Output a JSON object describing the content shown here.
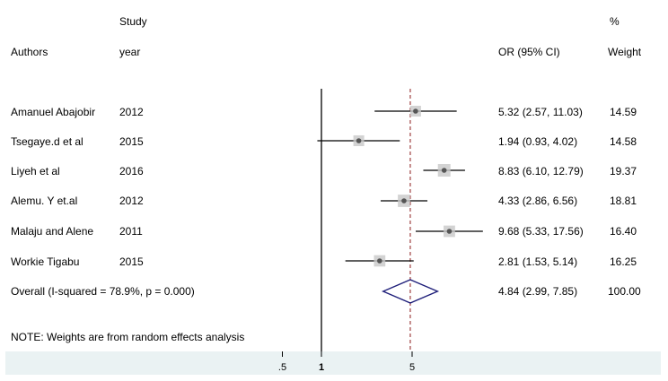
{
  "chart_data": {
    "type": "forest",
    "header": {
      "study_label": "Study",
      "authors_label": "Authors",
      "year_label": "year",
      "or_label": "OR (95% CI)",
      "pct_label": "%",
      "weight_label": "Weight"
    },
    "studies": [
      {
        "author": "Amanuel Abajobir",
        "year": "2012",
        "or": 5.32,
        "lo": 2.57,
        "hi": 11.03,
        "ci_text": "5.32 (2.57, 11.03)",
        "weight": "14.59"
      },
      {
        "author": "Tsegaye.d et al",
        "year": "2015",
        "or": 1.94,
        "lo": 0.93,
        "hi": 4.02,
        "ci_text": "1.94 (0.93, 4.02)",
        "weight": "14.58"
      },
      {
        "author": "Liyeh et al",
        "year": "2016",
        "or": 8.83,
        "lo": 6.1,
        "hi": 12.79,
        "ci_text": "8.83 (6.10, 12.79)",
        "weight": "19.37"
      },
      {
        "author": "Alemu. Y et.al",
        "year": "2012",
        "or": 4.33,
        "lo": 2.86,
        "hi": 6.56,
        "ci_text": "4.33 (2.86, 6.56)",
        "weight": "18.81"
      },
      {
        "author": "Malaju and Alene",
        "year": "2011",
        "or": 9.68,
        "lo": 5.33,
        "hi": 17.56,
        "ci_text": "9.68 (5.33, 17.56)",
        "weight": "16.40"
      },
      {
        "author": "Workie Tigabu",
        "year": "2015",
        "or": 2.81,
        "lo": 1.53,
        "hi": 5.14,
        "ci_text": "2.81 (1.53, 5.14)",
        "weight": "16.25"
      }
    ],
    "overall": {
      "label": "Overall  (I-squared = 78.9%, p = 0.000)",
      "or": 4.84,
      "lo": 2.99,
      "hi": 7.85,
      "ci_text": "4.84 (2.99, 7.85)",
      "weight": "100.00"
    },
    "note": "NOTE: Weights are from random effects analysis",
    "x_axis": {
      "scale": "log",
      "ticks": [
        {
          "value": 0.5,
          "label": ".5"
        },
        {
          "value": 1,
          "label": "1"
        },
        {
          "value": 5,
          "label": "5"
        }
      ]
    },
    "reference_line": 1,
    "colors": {
      "ci_line": "#000000",
      "point": "#555555",
      "weight_box": "#c8c8c8",
      "overall_line": "#8b1a1a",
      "diamond": "#1f1f7a",
      "band": "#eaf2f3"
    }
  }
}
